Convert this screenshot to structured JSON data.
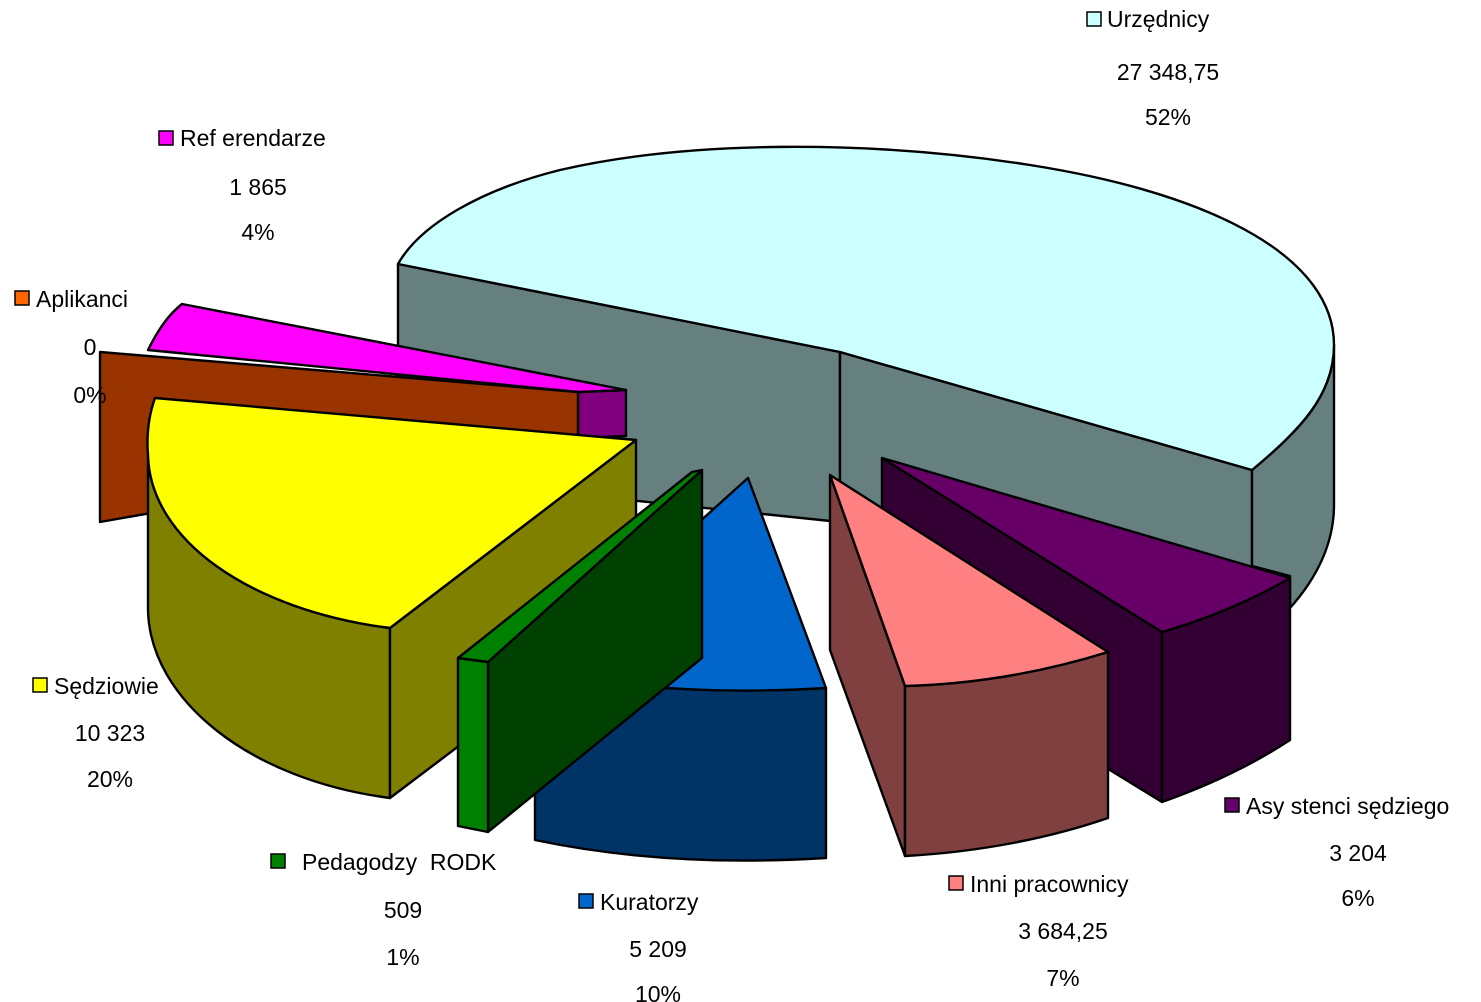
{
  "chart_data": {
    "type": "pie",
    "style": "3d-exploded",
    "title": "",
    "value_format": "space-thousands, comma-decimal",
    "slices": [
      {
        "key": "urzednicy",
        "label": "Urzędnicy",
        "value": "27 348,75",
        "number": 27348.75,
        "percent": "52%",
        "top_color": "#CCFFFF",
        "side_color": "#668080",
        "legend_color": "#CCFFFF"
      },
      {
        "key": "asystenci",
        "label": "Asy stenci sędziego",
        "value": "3 204",
        "number": 3204,
        "percent": "6%",
        "top_color": "#660066",
        "side_color": "#330033",
        "legend_color": "#660066"
      },
      {
        "key": "inni",
        "label": "Inni pracownicy",
        "value": "3 684,25",
        "number": 3684.25,
        "percent": "7%",
        "top_color": "#FF8080",
        "side_color": "#804040",
        "legend_color": "#FF8080"
      },
      {
        "key": "kuratorzy",
        "label": "Kuratorzy",
        "value": "5 209",
        "number": 5209,
        "percent": "10%",
        "top_color": "#0066CC",
        "side_color": "#003366",
        "legend_color": "#0066CC"
      },
      {
        "key": "pedagodzy",
        "label": "Pedagodzy  RODK",
        "value": "509",
        "number": 509,
        "percent": "1%",
        "top_color": "#008000",
        "side_color": "#004000",
        "legend_color": "#008000"
      },
      {
        "key": "sedziowie",
        "label": "Sędziowie",
        "value": "10 323",
        "number": 10323,
        "percent": "20%",
        "top_color": "#FFFF00",
        "side_color": "#808000",
        "legend_color": "#FFFF00"
      },
      {
        "key": "aplikanci",
        "label": "Aplikanci",
        "value": "0",
        "number": 0,
        "percent": "0%",
        "top_color": "#993300",
        "side_color": "#803300",
        "legend_color": "#FF6600"
      },
      {
        "key": "referendarze",
        "label": "Ref erendarze",
        "value": "1 865",
        "number": 1865,
        "percent": "4%",
        "top_color": "#FF00FF",
        "side_color": "#800080",
        "legend_color": "#FF00FF"
      }
    ]
  }
}
